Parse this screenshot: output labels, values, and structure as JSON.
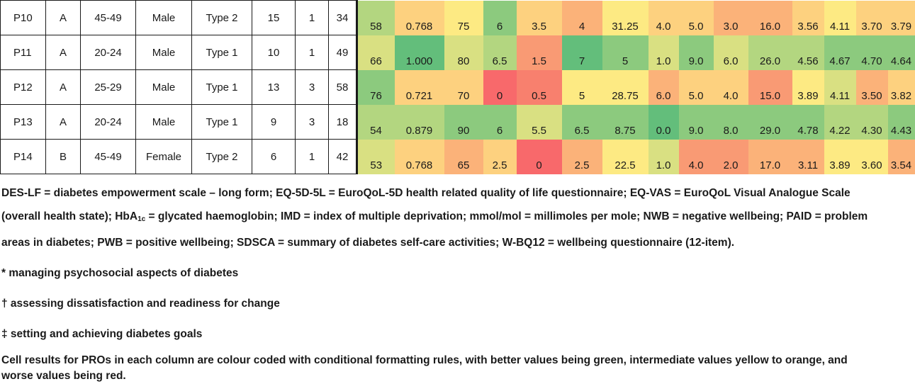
{
  "heat_colors": {
    "dark_green": "#63be7b",
    "green": "#8cca7e",
    "light_green": "#b3d680",
    "yellow_green": "#d9e082",
    "yellow": "#fdea83",
    "light_orange": "#fdd17f",
    "orange": "#fbb279",
    "dark_orange": "#f99a74",
    "red_orange": "#f8806e",
    "red": "#f8696b"
  },
  "rows": [
    {
      "id": "P10",
      "group": "A",
      "age": "45-49",
      "sex": "Male",
      "type": "Type 2",
      "c6": "15",
      "c7": "1",
      "c8": "34",
      "values": [
        "58",
        "0.768",
        "75",
        "6",
        "3.5",
        "4",
        "31.25",
        "4.0",
        "5.0",
        "3.0",
        "16.0",
        "3.56",
        "4.11",
        "3.70",
        "3.79"
      ],
      "colors": [
        "light_green",
        "light_orange",
        "yellow",
        "green",
        "light_orange",
        "orange",
        "yellow",
        "light_orange",
        "light_orange",
        "orange",
        "orange",
        "light_orange",
        "yellow",
        "light_orange",
        "light_orange"
      ]
    },
    {
      "id": "P11",
      "group": "A",
      "age": "20-24",
      "sex": "Male",
      "type": "Type 1",
      "c6": "10",
      "c7": "1",
      "c8": "49",
      "values": [
        "66",
        "1.000",
        "80",
        "6.5",
        "1.5",
        "7",
        "5",
        "1.0",
        "9.0",
        "6.0",
        "26.0",
        "4.56",
        "4.67",
        "4.70",
        "4.64"
      ],
      "colors": [
        "yellow_green",
        "dark_green",
        "yellow_green",
        "light_green",
        "dark_orange",
        "dark_green",
        "green",
        "yellow_green",
        "green",
        "yellow_green",
        "light_green",
        "light_green",
        "green",
        "green",
        "green"
      ]
    },
    {
      "id": "P12",
      "group": "A",
      "age": "25-29",
      "sex": "Male",
      "type": "Type 1",
      "c6": "13",
      "c7": "3",
      "c8": "58",
      "values": [
        "76",
        "0.721",
        "70",
        "0",
        "0.5",
        "5",
        "28.75",
        "6.0",
        "5.0",
        "4.0",
        "15.0",
        "3.89",
        "4.11",
        "3.50",
        "3.82"
      ],
      "colors": [
        "green",
        "light_orange",
        "light_orange",
        "red",
        "red_orange",
        "yellow",
        "yellow",
        "orange",
        "light_orange",
        "light_orange",
        "dark_orange",
        "yellow",
        "yellow_green",
        "orange",
        "light_orange"
      ]
    },
    {
      "id": "P13",
      "group": "A",
      "age": "20-24",
      "sex": "Male",
      "type": "Type 1",
      "c6": "9",
      "c7": "3",
      "c8": "18",
      "values": [
        "54",
        "0.879",
        "90",
        "6",
        "5.5",
        "6.5",
        "8.75",
        "0.0",
        "9.0",
        "8.0",
        "29.0",
        "4.78",
        "4.22",
        "4.30",
        "4.43"
      ],
      "colors": [
        "light_green",
        "light_green",
        "green",
        "green",
        "yellow_green",
        "green",
        "green",
        "dark_green",
        "green",
        "green",
        "green",
        "green",
        "light_green",
        "light_green",
        "green"
      ]
    },
    {
      "id": "P14",
      "group": "B",
      "age": "45-49",
      "sex": "Female",
      "type": "Type 2",
      "c6": "6",
      "c7": "1",
      "c8": "42",
      "values": [
        "53",
        "0.768",
        "65",
        "2.5",
        "0",
        "2.5",
        "22.5",
        "1.0",
        "4.0",
        "2.0",
        "17.0",
        "3.11",
        "3.89",
        "3.60",
        "3.54"
      ],
      "colors": [
        "yellow_green",
        "light_orange",
        "orange",
        "light_orange",
        "red",
        "orange",
        "yellow",
        "yellow_green",
        "dark_orange",
        "dark_orange",
        "orange",
        "orange",
        "yellow",
        "yellow",
        "orange"
      ]
    }
  ],
  "notes": {
    "abbrev_1": "DES-LF = diabetes empowerment scale – long form; EQ-5D-5L = EuroQoL-5D health related quality of life questionnaire; EQ-VAS = EuroQoL Visual Analogue Scale (overall health state); HbA",
    "abbrev_sub": "1c",
    "abbrev_2": " = glycated haemoglobin; IMD = index of multiple deprivation; mmol/mol = millimoles per mole; NWB = negative wellbeing; PAID = problem areas in diabetes; PWB = positive wellbeing; SDSCA = summary of diabetes self-care activities; W-BQ12 = wellbeing questionnaire (12-item).",
    "star": "* managing psychosocial aspects of diabetes",
    "dagger": "† assessing dissatisfaction and readiness for change",
    "double_dagger": "‡ setting and achieving diabetes goals",
    "color_note": "Cell results for PROs in each column are colour coded with conditional formatting rules, with better values being green, intermediate values yellow to orange, and worse values being red."
  }
}
